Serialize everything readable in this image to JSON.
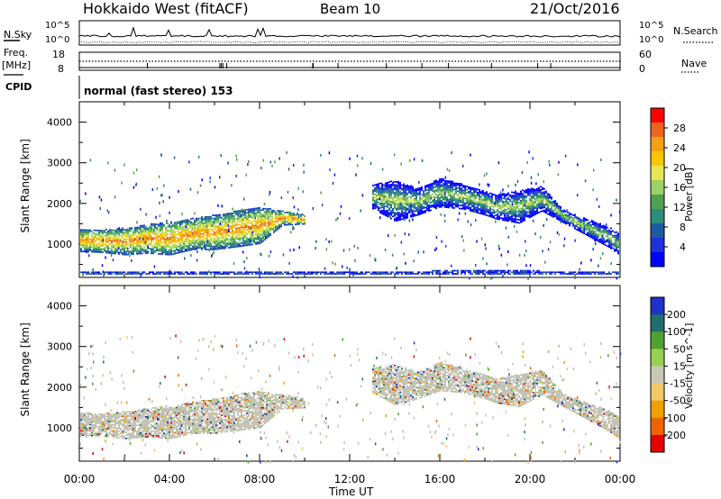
{
  "header": {
    "radar": "Hokkaido West (fitACF)",
    "beam": "Beam 10",
    "date": "21/Oct/2016",
    "mode": "normal (fast stereo) 153"
  },
  "strip": {
    "nsky_label": "N.Sky",
    "nsky_ticks": [
      "10^5",
      "10^0"
    ],
    "nsearch_label": "N.Search",
    "nsearch_ticks": [
      "10^5",
      "10^0"
    ],
    "freq_label": "Freq.",
    "freq_unit": "[MHz]",
    "freq_ticks": [
      "18",
      "8"
    ],
    "nave_label": "Nave",
    "nave_ticks": [
      "60",
      "0"
    ],
    "cpid_label": "CPID"
  },
  "chart_data": [
    {
      "type": "heatmap",
      "name": "power",
      "ylabel": "Slant Range [km]",
      "ylim": [
        180,
        4500
      ],
      "yticks": [
        1000,
        2000,
        3000,
        4000
      ],
      "xlim": [
        0,
        24
      ],
      "colorbar": {
        "label": "Power [dB]",
        "ticks": [
          "28",
          "24",
          "20",
          "16",
          "12",
          "8",
          "4"
        ],
        "colors": [
          "#ff0000",
          "#f0641e",
          "#f5a014",
          "#f5c800",
          "#e6e650",
          "#9bd264",
          "#50a050",
          "#2d8c7d",
          "#1e5aa0",
          "#1e32dc",
          "#0000ff"
        ]
      },
      "bands": [
        {
          "t": [
            0.0,
            1.0,
            2.0,
            3.0,
            4.0,
            5.0,
            6.0,
            7.0,
            8.0,
            9.0,
            10.0
          ],
          "lo": [
            800,
            780,
            720,
            760,
            720,
            850,
            850,
            920,
            1000,
            1450,
            1480
          ],
          "hi": [
            1350,
            1340,
            1380,
            1470,
            1520,
            1620,
            1700,
            1800,
            1880,
            1800,
            1700
          ],
          "power": 16
        },
        {
          "t": [
            13.0,
            14.0,
            15.0,
            16.0,
            17.0,
            18.0,
            18.5,
            19.5,
            20.5,
            21.5,
            22.5,
            23.5,
            24.0
          ],
          "lo": [
            1850,
            1550,
            1700,
            1900,
            1850,
            1700,
            1600,
            1500,
            1800,
            1500,
            1200,
            900,
            700
          ],
          "hi": [
            2450,
            2550,
            2350,
            2600,
            2450,
            2300,
            2200,
            2300,
            2400,
            1800,
            1600,
            1400,
            1200
          ],
          "power": 12
        },
        {
          "t": [
            0.0,
            6.0,
            12.0,
            18.0,
            24.0
          ],
          "lo": [
            250,
            250,
            250,
            250,
            250
          ],
          "hi": [
            300,
            300,
            320,
            330,
            320
          ],
          "power": 8
        }
      ]
    },
    {
      "type": "heatmap",
      "name": "velocity",
      "ylabel": "Slant Range [km]",
      "xlabel": "Time UT",
      "ylim": [
        180,
        4500
      ],
      "yticks": [
        1000,
        2000,
        3000,
        4000
      ],
      "xlim": [
        0,
        24
      ],
      "xticks": [
        "00:00",
        "04:00",
        "08:00",
        "12:00",
        "16:00",
        "20:00",
        "00:00"
      ],
      "colorbar": {
        "label": "Velocity [m s^-1]",
        "ticks": [
          "200",
          "100",
          "50",
          "15",
          "-15",
          "-50",
          "-100",
          "-200"
        ],
        "colors": [
          "#1e32c8",
          "#1e6e6e",
          "#50a032",
          "#96d250",
          "#c8c8b4",
          "#f0c864",
          "#f0a000",
          "#f06400",
          "#e60000"
        ]
      },
      "ground_scatter_color": "#c0c0b4",
      "bands": [
        {
          "t": [
            0.0,
            1.0,
            2.0,
            3.0,
            4.0,
            5.0,
            6.0,
            7.0,
            8.0,
            9.0,
            10.0
          ],
          "lo": [
            800,
            780,
            720,
            760,
            720,
            850,
            850,
            920,
            1000,
            1450,
            1480
          ],
          "hi": [
            1350,
            1340,
            1380,
            1470,
            1520,
            1620,
            1700,
            1800,
            1880,
            1800,
            1700
          ]
        },
        {
          "t": [
            13.0,
            14.0,
            15.0,
            16.0,
            17.0,
            18.0,
            18.5,
            19.5,
            20.5,
            21.5,
            22.5,
            23.5,
            24.0
          ],
          "lo": [
            1850,
            1550,
            1700,
            1900,
            1850,
            1700,
            1600,
            1500,
            1800,
            1500,
            1200,
            900,
            700
          ],
          "hi": [
            2450,
            2550,
            2350,
            2600,
            2450,
            2300,
            2200,
            2300,
            2400,
            1800,
            1600,
            1400,
            1200
          ]
        }
      ]
    }
  ]
}
